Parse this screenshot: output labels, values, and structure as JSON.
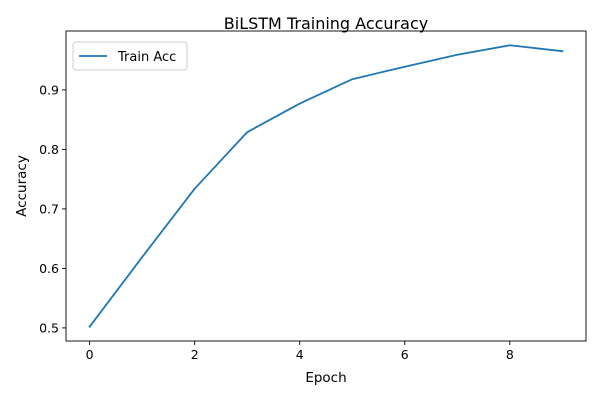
{
  "chart_data": {
    "type": "line",
    "title": "BiLSTM Training Accuracy",
    "xlabel": "Epoch",
    "ylabel": "Accuracy",
    "x": [
      0,
      1,
      2,
      3,
      4,
      5,
      6,
      7,
      8,
      9
    ],
    "series": [
      {
        "name": "Train Acc",
        "color": "#1f77b4",
        "values": [
          0.502,
          0.619,
          0.734,
          0.829,
          0.877,
          0.918,
          0.939,
          0.959,
          0.975,
          0.965
        ]
      }
    ],
    "xlim": [
      -0.45,
      9.45
    ],
    "ylim": [
      0.478,
      0.999
    ],
    "xticks": [
      0,
      2,
      4,
      6,
      8
    ],
    "yticks": [
      0.5,
      0.6,
      0.7,
      0.8,
      0.9
    ],
    "xtick_labels": [
      "0",
      "2",
      "4",
      "6",
      "8"
    ],
    "ytick_labels": [
      "0.5",
      "0.6",
      "0.7",
      "0.8",
      "0.9"
    ],
    "grid": false,
    "legend_position": "top-left"
  }
}
